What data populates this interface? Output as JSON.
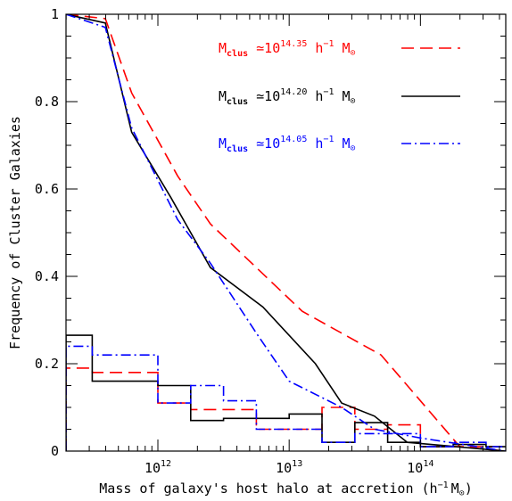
{
  "chart_data": {
    "type": "line",
    "title": "",
    "xlabel": "Mass of galaxy's host halo at accretion (h",
    "xlabel_exp": "−1",
    "xlabel_unit": "M",
    "xlabel_unit_sub": "⊙",
    "xlabel_close": ")",
    "ylabel": "Frequency of Cluster Galaxies",
    "x_scale": "log10",
    "xlim": [
      11.3,
      14.65
    ],
    "ylim": [
      0,
      1
    ],
    "x_ticks": [
      {
        "value": 12,
        "base": "10",
        "exp": "12"
      },
      {
        "value": 13,
        "base": "10",
        "exp": "13"
      },
      {
        "value": 14,
        "base": "10",
        "exp": "14"
      }
    ],
    "y_ticks": [
      {
        "value": 0,
        "label": "0"
      },
      {
        "value": 0.2,
        "label": "0.2"
      },
      {
        "value": 0.4,
        "label": "0.4"
      },
      {
        "value": 0.6,
        "label": "0.6"
      },
      {
        "value": 0.8,
        "label": "0.8"
      },
      {
        "value": 1,
        "label": "1"
      }
    ],
    "legend": {
      "placement": "top-right",
      "entries": [
        {
          "series": 0,
          "m": "M",
          "sub": "clus",
          "approx": " ≃10",
          "exp": "14.35",
          "unit": " h",
          "unit_exp": "−1",
          "msun": " M",
          "sun": "⊙"
        },
        {
          "series": 1,
          "m": "M",
          "sub": "clus",
          "approx": " ≃10",
          "exp": "14.20",
          "unit": " h",
          "unit_exp": "−1",
          "msun": " M",
          "sun": "⊙"
        },
        {
          "series": 2,
          "m": "M",
          "sub": "clus",
          "approx": " ≃10",
          "exp": "14.05",
          "unit": " h",
          "unit_exp": "−1",
          "msun": " M",
          "sun": "⊙"
        }
      ]
    },
    "series": [
      {
        "color": "#ff0000",
        "style": "dashed",
        "cumulative": [
          [
            11.3,
            1.0
          ],
          [
            11.6,
            0.99
          ],
          [
            11.8,
            0.82
          ],
          [
            12.15,
            0.63
          ],
          [
            12.4,
            0.52
          ],
          [
            12.75,
            0.42
          ],
          [
            13.1,
            0.32
          ],
          [
            13.4,
            0.27
          ],
          [
            13.7,
            0.22
          ],
          [
            14.1,
            0.08
          ],
          [
            14.3,
            0.01
          ],
          [
            14.65,
            0.0
          ]
        ],
        "histogram": [
          [
            11.3,
            0.19
          ],
          [
            11.5,
            0.18
          ],
          [
            12.0,
            0.11
          ],
          [
            12.25,
            0.095
          ],
          [
            12.75,
            0.05
          ],
          [
            13.25,
            0.1
          ],
          [
            13.5,
            0.05
          ],
          [
            13.75,
            0.06
          ],
          [
            14.0,
            0.01
          ],
          [
            14.25,
            0.01
          ],
          [
            14.5,
            0.01
          ]
        ]
      },
      {
        "color": "#000000",
        "style": "solid",
        "cumulative": [
          [
            11.3,
            1.0
          ],
          [
            11.6,
            0.98
          ],
          [
            11.8,
            0.73
          ],
          [
            12.1,
            0.58
          ],
          [
            12.4,
            0.42
          ],
          [
            12.8,
            0.33
          ],
          [
            13.2,
            0.2
          ],
          [
            13.4,
            0.11
          ],
          [
            13.65,
            0.08
          ],
          [
            13.9,
            0.02
          ],
          [
            14.65,
            0.0
          ]
        ],
        "histogram": [
          [
            11.3,
            0.265
          ],
          [
            11.5,
            0.16
          ],
          [
            12.0,
            0.15
          ],
          [
            12.25,
            0.07
          ],
          [
            12.5,
            0.075
          ],
          [
            13.0,
            0.085
          ],
          [
            13.25,
            0.02
          ],
          [
            13.5,
            0.065
          ],
          [
            13.75,
            0.02
          ],
          [
            14.0,
            0.01
          ],
          [
            14.25,
            0.015
          ],
          [
            14.5,
            0.01
          ]
        ]
      },
      {
        "color": "#0000ff",
        "style": "dashdot",
        "cumulative": [
          [
            11.3,
            1.0
          ],
          [
            11.6,
            0.97
          ],
          [
            11.8,
            0.74
          ],
          [
            12.15,
            0.53
          ],
          [
            12.4,
            0.43
          ],
          [
            12.75,
            0.27
          ],
          [
            13.0,
            0.16
          ],
          [
            13.4,
            0.1
          ],
          [
            13.65,
            0.05
          ],
          [
            14.0,
            0.03
          ],
          [
            14.65,
            0.0
          ]
        ],
        "histogram": [
          [
            11.3,
            0.24
          ],
          [
            11.5,
            0.22
          ],
          [
            12.0,
            0.11
          ],
          [
            12.25,
            0.15
          ],
          [
            12.5,
            0.115
          ],
          [
            12.75,
            0.05
          ],
          [
            13.25,
            0.02
          ],
          [
            13.5,
            0.04
          ],
          [
            13.75,
            0.04
          ],
          [
            14.0,
            0.01
          ],
          [
            14.25,
            0.02
          ],
          [
            14.5,
            0.01
          ]
        ]
      }
    ]
  }
}
